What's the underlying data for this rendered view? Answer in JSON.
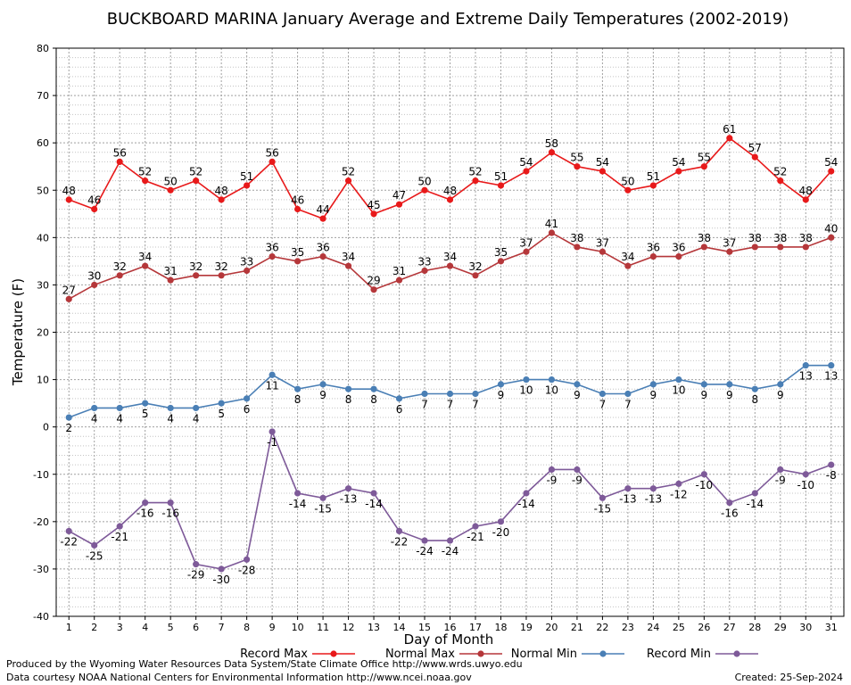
{
  "chart_data": {
    "type": "line",
    "title": "BUCKBOARD MARINA January Average and Extreme Daily Temperatures (2002-2019)",
    "xlabel": "Day of Month",
    "ylabel": "Temperature (F)",
    "xlim": [
      0.5,
      31.5
    ],
    "ylim": [
      -40,
      80
    ],
    "y_ticks": [
      -40,
      -30,
      -20,
      -10,
      0,
      10,
      20,
      30,
      40,
      50,
      60,
      70,
      80
    ],
    "x": [
      1,
      2,
      3,
      4,
      5,
      6,
      7,
      8,
      9,
      10,
      11,
      12,
      13,
      14,
      15,
      16,
      17,
      18,
      19,
      20,
      21,
      22,
      23,
      24,
      25,
      26,
      27,
      28,
      29,
      30,
      31
    ],
    "grid": true,
    "legend_position": "bottom",
    "series": [
      {
        "name": "Record Max",
        "color": "#e8191a",
        "values": [
          48,
          46,
          56,
          52,
          50,
          52,
          48,
          51,
          56,
          46,
          44,
          52,
          45,
          47,
          50,
          48,
          52,
          51,
          54,
          58,
          55,
          54,
          50,
          51,
          54,
          55,
          61,
          57,
          52,
          48,
          54
        ]
      },
      {
        "name": "Normal Max",
        "color": "#b5373a",
        "values": [
          27,
          30,
          32,
          34,
          31,
          32,
          32,
          33,
          36,
          35,
          36,
          34,
          29,
          31,
          33,
          34,
          32,
          35,
          37,
          41,
          38,
          37,
          34,
          36,
          36,
          38,
          37,
          38,
          38,
          38,
          40
        ]
      },
      {
        "name": "Normal Min",
        "color": "#4a7fb5",
        "values": [
          2,
          4,
          4,
          5,
          4,
          4,
          5,
          6,
          11,
          8,
          9,
          8,
          8,
          6,
          7,
          7,
          7,
          9,
          10,
          10,
          9,
          7,
          7,
          9,
          10,
          9,
          9,
          8,
          9,
          13,
          13
        ]
      },
      {
        "name": "Record Min",
        "color": "#7e5a99",
        "values": [
          -22,
          -25,
          -21,
          -16,
          -16,
          -29,
          -30,
          -28,
          -1,
          -14,
          -15,
          -13,
          -14,
          -22,
          -24,
          -24,
          -21,
          -20,
          -14,
          -9,
          -9,
          -15,
          -13,
          -13,
          -12,
          -10,
          -16,
          -14,
          -9,
          -10,
          -8
        ]
      }
    ]
  },
  "footer": {
    "produced_by": "Produced by the Wyoming Water Resources Data System/State Climate Office http://www.wrds.uwyo.edu",
    "courtesy": "Data courtesy NOAA National Centers for Environmental Information http://www.ncei.noaa.gov",
    "created": "Created:  25-Sep-2024"
  }
}
